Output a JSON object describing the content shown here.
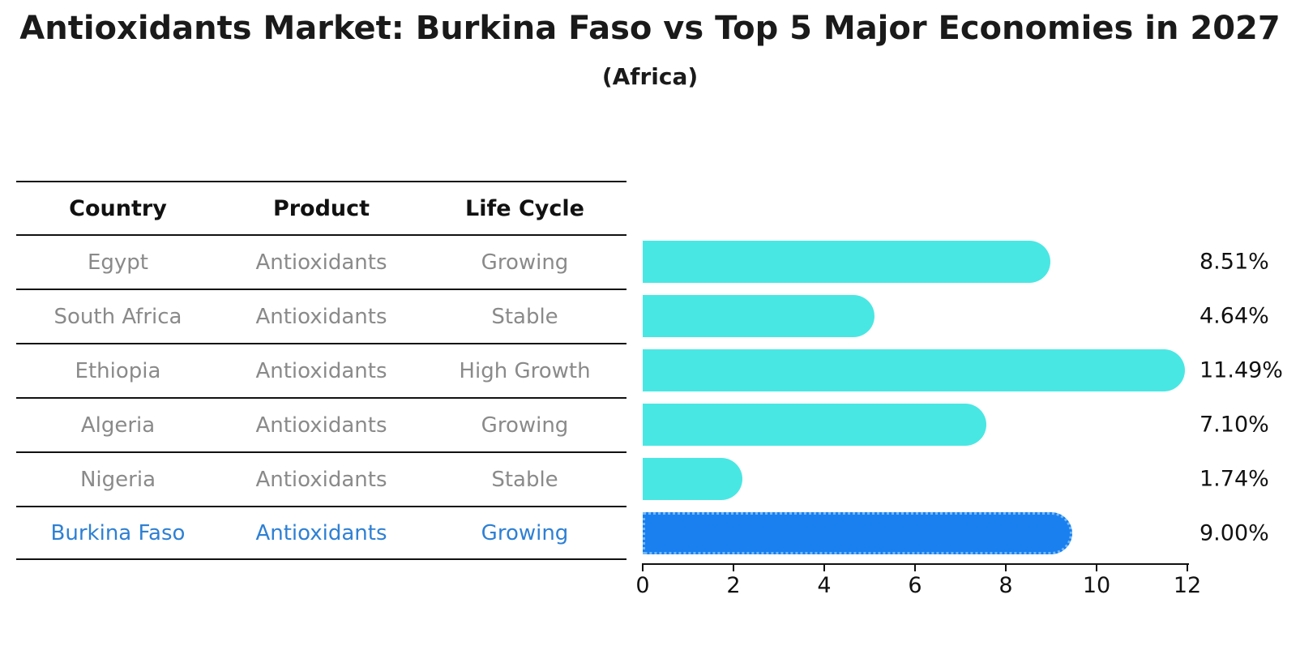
{
  "header": {
    "title": "Antioxidants Market: Burkina Faso vs Top 5 Major Economies in 2027",
    "subtitle": "(Africa)"
  },
  "table": {
    "headers": [
      "Country",
      "Product",
      "Life Cycle"
    ],
    "rows": [
      {
        "country": "Egypt",
        "product": "Antioxidants",
        "life_cycle": "Growing",
        "highlight": false
      },
      {
        "country": "South Africa",
        "product": "Antioxidants",
        "life_cycle": "Stable",
        "highlight": false
      },
      {
        "country": "Ethiopia",
        "product": "Antioxidants",
        "life_cycle": "High Growth",
        "highlight": false
      },
      {
        "country": "Algeria",
        "product": "Antioxidants",
        "life_cycle": "Growing",
        "highlight": false
      },
      {
        "country": "Nigeria",
        "product": "Antioxidants",
        "life_cycle": "Stable",
        "highlight": false
      },
      {
        "country": "Burkina Faso",
        "product": "Antioxidants",
        "life_cycle": "Growing",
        "highlight": true
      }
    ]
  },
  "chart_data": {
    "type": "bar",
    "orientation": "horizontal",
    "title": "Antioxidants Market: Burkina Faso vs Top 5 Major Economies in 2027 (Africa)",
    "categories": [
      "Egypt",
      "South Africa",
      "Ethiopia",
      "Algeria",
      "Nigeria",
      "Burkina Faso"
    ],
    "values": [
      8.51,
      4.64,
      11.49,
      7.1,
      1.74,
      9.0
    ],
    "value_labels": [
      "8.51%",
      "4.64%",
      "11.49%",
      "7.10%",
      "1.74%",
      "9.00%"
    ],
    "xlim": [
      0,
      12
    ],
    "x_ticks": [
      0,
      2,
      4,
      6,
      8,
      10,
      12
    ],
    "x_tick_labels": [
      "0",
      "2",
      "4",
      "6",
      "8",
      "10",
      "12"
    ],
    "grid": false,
    "legend": false,
    "bar_color": "#49E7E3",
    "highlight_bar_color": "#1A80F0",
    "highlight_index": 5
  },
  "colors": {
    "bar": "#49E7E3",
    "highlight_bar": "#1A80F0",
    "highlight_border": "#74B9F7",
    "highlight_text": "#2E80D4",
    "body_text": "#8a8a8a",
    "ink": "#111111"
  }
}
